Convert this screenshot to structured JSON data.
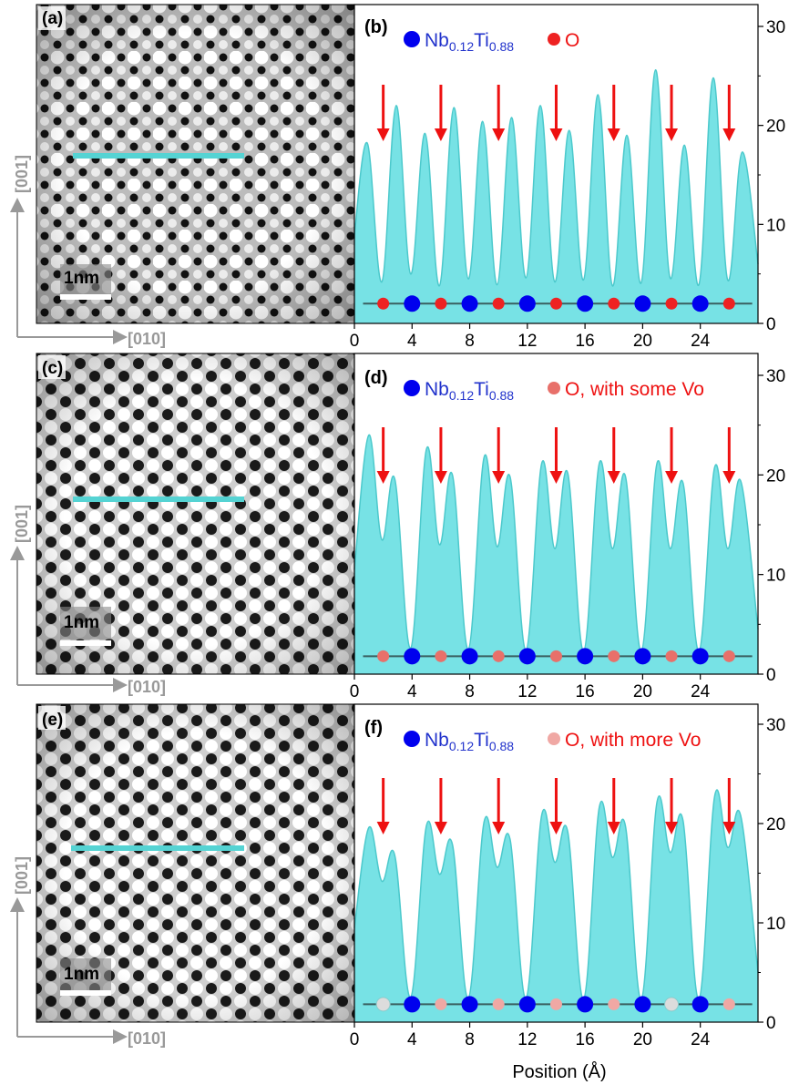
{
  "figure": {
    "x_axis_label": "Position (Å)",
    "x_ticks": [
      "0",
      "4",
      "8",
      "12",
      "16",
      "20",
      "24"
    ],
    "y_ticks": [
      "0",
      "10",
      "20",
      "30"
    ],
    "dir_vertical": "[001]",
    "dir_horizontal": "[010]",
    "scale_bar": "1nm",
    "legend_nb_main": "Nb",
    "legend_nb_sub1": "0.12",
    "legend_ti": "Ti",
    "legend_nb_sub2": "0.88",
    "colors": {
      "profile_fill": "#5fdde0",
      "profile_line": "#4cc9cc",
      "nb_ti_marker": "#0000ee",
      "arrow": "#ee1111",
      "legend_text_red": "#ee1111",
      "legend_text_blue": "#2233cc"
    }
  },
  "panels": [
    {
      "image_label": "(a)",
      "plot_label": "(b)",
      "o_legend": "O",
      "o_marker_color": "#ee2222",
      "image_style": "square-lattice"
    },
    {
      "image_label": "(c)",
      "plot_label": "(d)",
      "o_legend": "O, with some Vo",
      "o_marker_color": "#e8706a",
      "image_style": "hex-lattice"
    },
    {
      "image_label": "(e)",
      "plot_label": "(f)",
      "o_legend": "O, with more Vo",
      "o_marker_color": "#f0a8a4",
      "image_style": "hex-lattice"
    }
  ],
  "chart_data": [
    {
      "type": "area",
      "panel": "(b)",
      "xlabel": "Position (Å)",
      "xlim": [
        0,
        28
      ],
      "ylim": [
        0,
        32
      ],
      "peaks_x": [
        0.9,
        2.9,
        4.9,
        6.9,
        8.9,
        10.9,
        12.9,
        14.9,
        16.9,
        18.9,
        20.9,
        22.9,
        24.9,
        26.9
      ],
      "peaks_y": [
        18.2,
        22.0,
        19.2,
        21.8,
        20.4,
        20.8,
        22.0,
        19.5,
        23.1,
        19.0,
        25.6,
        18.0,
        24.8,
        17.3
      ],
      "valleys_y": [
        4.2,
        5.0,
        3.8,
        4.5,
        3.9,
        4.6,
        4.2,
        4.4,
        3.8,
        4.1,
        4.6,
        3.9,
        4.4
      ],
      "start_y": 9.0,
      "end_y": 6.0,
      "arrows_x": [
        2,
        6,
        10,
        14,
        18,
        22,
        26
      ],
      "nb_ti_positions": [
        4,
        8,
        12,
        16,
        20,
        24
      ],
      "o_positions": [
        2,
        6,
        10,
        14,
        18,
        22,
        26
      ],
      "marker_y": 2.0
    },
    {
      "type": "area",
      "panel": "(d)",
      "xlabel": "Position (Å)",
      "xlim": [
        0,
        28
      ],
      "ylim": [
        0,
        32
      ],
      "peaks_x": [
        1.0,
        2.8,
        5.0,
        6.8,
        9.0,
        10.8,
        13.0,
        14.8,
        17.0,
        18.8,
        21.0,
        22.8,
        25.0,
        26.8
      ],
      "peaks_y": [
        24.0,
        19.6,
        22.6,
        20.0,
        21.8,
        19.8,
        21.2,
        20.2,
        21.2,
        19.9,
        21.2,
        19.2,
        20.8,
        19.4
      ],
      "valleys_y": [
        13.5,
        2.6,
        13.0,
        2.5,
        12.8,
        2.4,
        12.6,
        2.3,
        12.6,
        2.3,
        12.6,
        2.3,
        12.6
      ],
      "start_y": 10.5,
      "end_y": 4.5,
      "arrows_x": [
        2,
        6,
        10,
        14,
        18,
        22,
        26
      ],
      "nb_ti_positions": [
        4,
        8,
        12,
        16,
        20,
        24
      ],
      "o_positions": [
        2,
        6,
        10,
        14,
        18,
        22,
        26
      ],
      "marker_y": 1.8
    },
    {
      "type": "area",
      "panel": "(f)",
      "xlabel": "Position (Å)",
      "xlim": [
        0,
        28
      ],
      "ylim": [
        0,
        32
      ],
      "peaks_x": [
        1.0,
        2.8,
        5.0,
        6.8,
        9.0,
        10.8,
        13.0,
        14.8,
        17.0,
        18.8,
        21.0,
        22.8,
        25.0,
        26.8
      ],
      "peaks_y": [
        19.6,
        16.8,
        19.8,
        17.9,
        20.2,
        18.4,
        20.9,
        19.2,
        21.7,
        19.8,
        22.2,
        20.3,
        22.8,
        20.8
      ],
      "valleys_y": [
        14.2,
        2.5,
        14.9,
        2.4,
        15.6,
        2.4,
        16.1,
        2.3,
        16.6,
        2.3,
        17.1,
        2.3,
        17.6
      ],
      "start_y": 9.5,
      "end_y": 5.0,
      "arrows_x": [
        2,
        6,
        10,
        14,
        18,
        22,
        26
      ],
      "nb_ti_positions": [
        4,
        8,
        12,
        16,
        20,
        24
      ],
      "o_positions": [
        2,
        6,
        10,
        14,
        18,
        22,
        26
      ],
      "o_alt_positions": [
        2,
        22
      ],
      "marker_y": 1.8
    }
  ]
}
